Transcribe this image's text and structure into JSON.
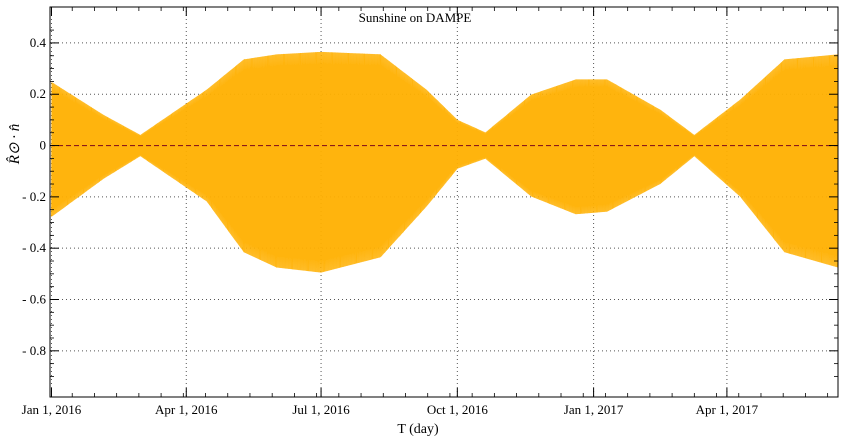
{
  "chart_data": {
    "type": "line",
    "title": "Sunshine on DAMPE",
    "xlabel": "T (day)",
    "ylabel": "R̂⊙ · n̂",
    "xlim": [
      "2015-12-31",
      "2017-06-15"
    ],
    "ylim": [
      -0.98,
      0.54
    ],
    "grid": true,
    "x_ticks": [
      "2016-01-01",
      "2016-04-01",
      "2016-07-01",
      "2016-10-01",
      "2017-01-01",
      "2017-04-01"
    ],
    "x_tick_labels": [
      "Jan 1, 2016",
      "Apr 1, 2016",
      "Jul 1, 2016",
      "Oct 1, 2016",
      "Jan 1, 2017",
      "Apr 1, 2017"
    ],
    "y_ticks": [
      0.4,
      0.2,
      0,
      -0.2,
      -0.4,
      -0.6,
      -0.8
    ],
    "y_tick_labels": [
      "0.4",
      "0.2",
      "0",
      "- 0.2",
      "- 0.4",
      "- 0.6",
      "- 0.8"
    ],
    "series": [
      {
        "color": "#ffb000",
        "style": "oscillating",
        "upper_envelope": {
          "x": [
            "2016-01-01",
            "2016-02-05",
            "2016-03-01",
            "2016-04-15",
            "2016-05-10",
            "2016-06-01",
            "2016-07-01",
            "2016-08-10",
            "2016-09-10",
            "2016-10-01",
            "2016-10-20",
            "2016-11-20",
            "2016-12-20",
            "2017-01-10",
            "2017-02-15",
            "2017-03-10",
            "2017-04-10",
            "2017-05-10",
            "2017-06-15"
          ],
          "y": [
            0.25,
            0.12,
            0.04,
            0.22,
            0.34,
            0.36,
            0.37,
            0.36,
            0.22,
            0.1,
            0.05,
            0.2,
            0.26,
            0.26,
            0.14,
            0.04,
            0.18,
            0.34,
            0.36
          ]
        },
        "lower_envelope": {
          "x": [
            "2016-01-01",
            "2016-02-05",
            "2016-03-01",
            "2016-04-15",
            "2016-05-10",
            "2016-06-01",
            "2016-07-01",
            "2016-08-10",
            "2016-09-10",
            "2016-10-01",
            "2016-10-20",
            "2016-11-20",
            "2016-12-20",
            "2017-01-10",
            "2017-02-15",
            "2017-03-10",
            "2017-04-10",
            "2017-05-10",
            "2017-06-15"
          ],
          "y": [
            -0.28,
            -0.13,
            -0.04,
            -0.22,
            -0.42,
            -0.48,
            -0.5,
            -0.44,
            -0.24,
            -0.09,
            -0.05,
            -0.2,
            -0.27,
            -0.26,
            -0.15,
            -0.04,
            -0.2,
            -0.42,
            -0.48
          ]
        }
      },
      {
        "color": "#8b1a1a",
        "style": "dashed",
        "x": [
          "2015-12-31",
          "2017-06-15"
        ],
        "y": [
          0,
          0
        ]
      }
    ]
  }
}
